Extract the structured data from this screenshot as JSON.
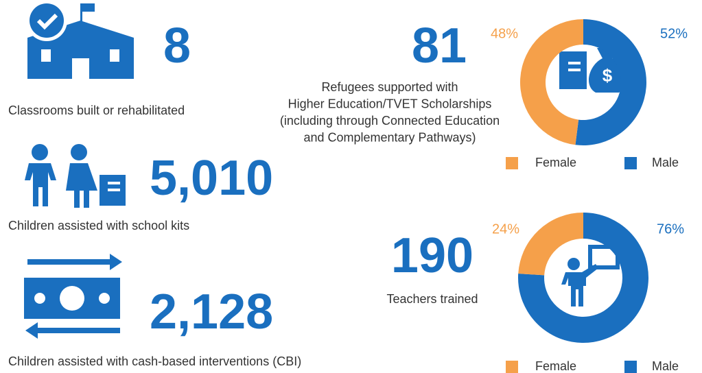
{
  "stats": [
    {
      "number": "8",
      "label": "Classrooms built or rehabilitated"
    },
    {
      "number": "5,010",
      "label": "Children assisted with school kits"
    },
    {
      "number": "2,128",
      "label": "Children assisted with cash-based interventions (CBI)"
    }
  ],
  "donuts": [
    {
      "number": "81",
      "label_lines": [
        "Refugees supported with",
        "Higher Education/TVET Scholarships",
        "(including through Connected Education",
        "and Complementary Pathways)"
      ],
      "series": [
        {
          "name": "Female",
          "color": "#f5a04a",
          "value": 48,
          "value_label": "48%"
        },
        {
          "name": "Male",
          "color": "#1a6fbf",
          "value": 52,
          "value_label": "52%"
        }
      ]
    },
    {
      "number": "190",
      "label_lines": [
        "Teachers trained"
      ],
      "series": [
        {
          "name": "Female",
          "color": "#f5a04a",
          "value": 24,
          "value_label": "24%"
        },
        {
          "name": "Male",
          "color": "#1a6fbf",
          "value": 76,
          "value_label": "76%"
        }
      ]
    }
  ]
}
